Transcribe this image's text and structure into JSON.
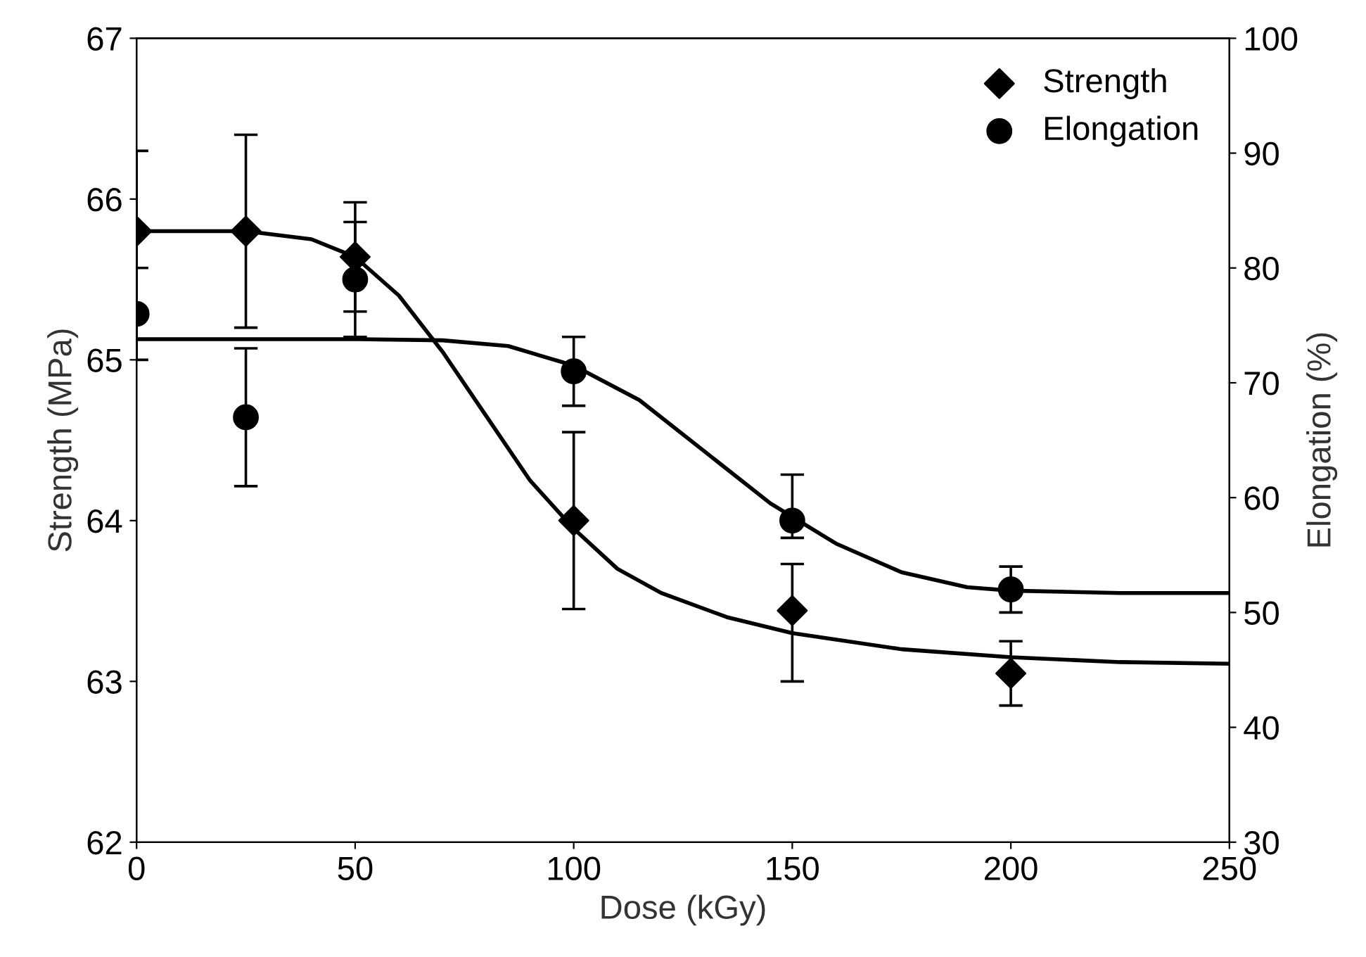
{
  "chart_data": {
    "type": "scatter",
    "xlabel": "Dose (kGy)",
    "ylabel": "Strength (MPa)",
    "y2label": "Elongation (%)",
    "xlim": [
      0,
      250
    ],
    "xticks": [
      0,
      50,
      100,
      150,
      200,
      250
    ],
    "ylim": [
      62,
      67
    ],
    "yticks": [
      62,
      63,
      64,
      65,
      66,
      67
    ],
    "y2lim": [
      30,
      100
    ],
    "y2ticks": [
      30,
      40,
      50,
      60,
      70,
      80,
      90,
      100
    ],
    "grid": false,
    "legend": "top right",
    "series": [
      {
        "name": "Strength",
        "marker": "diamond",
        "color": "#000000",
        "x": [
          0,
          25,
          50,
          100,
          150,
          200
        ],
        "values": [
          65.8,
          65.8,
          65.64,
          64.0,
          63.44,
          63.05
        ],
        "errors": [
          0.5,
          0.6,
          0.34,
          0.55,
          [
            63.0,
            63.73
          ],
          0.2
        ]
      },
      {
        "name": "Elongation",
        "marker": "circle",
        "axis": "y2",
        "color": "#000000",
        "x": [
          0,
          25,
          50,
          100,
          150,
          200
        ],
        "values": [
          76,
          67,
          79,
          71,
          58,
          52
        ],
        "errors": [
          4,
          6,
          5,
          3,
          [
            56.5,
            62
          ],
          2
        ]
      },
      {
        "type": "line",
        "color": "#000000",
        "x": [
          0,
          25,
          40,
          50,
          60,
          70,
          80,
          90,
          100,
          110,
          120,
          135,
          150,
          175,
          200,
          225,
          250
        ],
        "values": [
          65.8,
          65.8,
          65.75,
          65.64,
          65.4,
          65.05,
          64.65,
          64.25,
          63.95,
          63.7,
          63.55,
          63.4,
          63.3,
          63.2,
          63.15,
          63.12,
          63.11
        ]
      },
      {
        "type": "line",
        "axis": "y2",
        "color": "#000000",
        "x": [
          0,
          50,
          70,
          85,
          100,
          115,
          130,
          145,
          160,
          175,
          190,
          200,
          225,
          250
        ],
        "values": [
          73.8,
          73.8,
          73.7,
          73.2,
          71.5,
          68.5,
          64,
          59.5,
          56,
          53.5,
          52.2,
          51.9,
          51.7,
          51.7
        ]
      }
    ]
  }
}
